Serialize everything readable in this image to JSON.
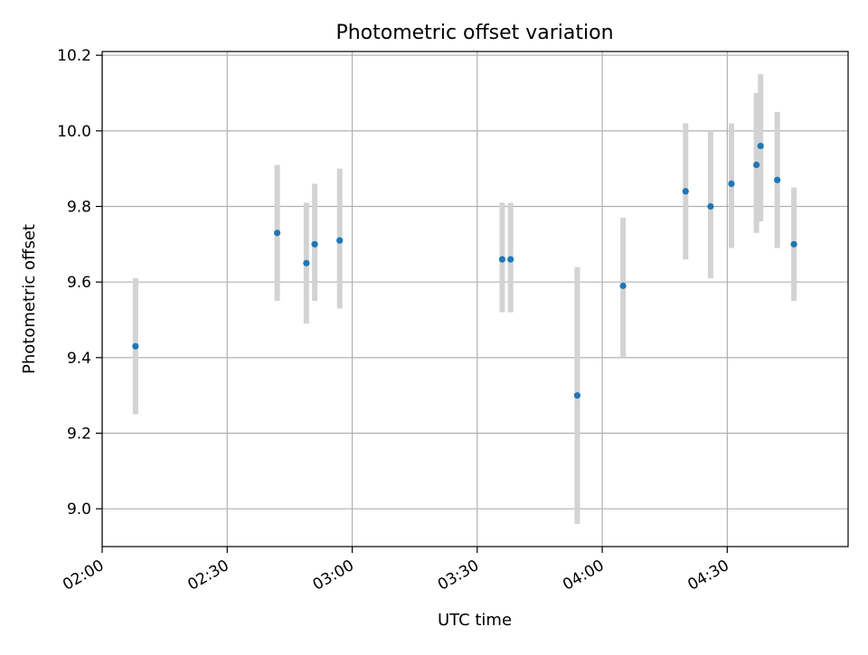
{
  "chart_data": {
    "type": "scatter",
    "title": "Photometric offset variation",
    "xlabel": "UTC time",
    "ylabel": "Photometric offset",
    "x_type": "time",
    "xlim": [
      "02:00",
      "04:59"
    ],
    "ylim": [
      8.9,
      10.21
    ],
    "xticks": [
      "02:00",
      "02:30",
      "03:00",
      "03:30",
      "04:00",
      "04:30"
    ],
    "yticks": [
      "9.0",
      "9.2",
      "9.4",
      "9.6",
      "9.8",
      "10.0",
      "10.2"
    ],
    "grid": true,
    "marker_color": "#1f77b4",
    "errorbar_color": "#d3d3d3",
    "points": [
      {
        "x": "02:08",
        "y": 9.43,
        "ylow": 9.25,
        "yhigh": 9.61
      },
      {
        "x": "02:42",
        "y": 9.73,
        "ylow": 9.55,
        "yhigh": 9.91
      },
      {
        "x": "02:49",
        "y": 9.65,
        "ylow": 9.49,
        "yhigh": 9.81
      },
      {
        "x": "02:51",
        "y": 9.7,
        "ylow": 9.55,
        "yhigh": 9.86
      },
      {
        "x": "02:57",
        "y": 9.71,
        "ylow": 9.53,
        "yhigh": 9.9
      },
      {
        "x": "03:36",
        "y": 9.66,
        "ylow": 9.52,
        "yhigh": 9.81
      },
      {
        "x": "03:38",
        "y": 9.66,
        "ylow": 9.52,
        "yhigh": 9.81
      },
      {
        "x": "03:54",
        "y": 9.3,
        "ylow": 8.96,
        "yhigh": 9.64
      },
      {
        "x": "04:05",
        "y": 9.59,
        "ylow": 9.4,
        "yhigh": 9.77
      },
      {
        "x": "04:20",
        "y": 9.84,
        "ylow": 9.66,
        "yhigh": 10.02
      },
      {
        "x": "04:26",
        "y": 9.8,
        "ylow": 9.61,
        "yhigh": 10.0
      },
      {
        "x": "04:31",
        "y": 9.86,
        "ylow": 9.69,
        "yhigh": 10.02
      },
      {
        "x": "04:37",
        "y": 9.91,
        "ylow": 9.73,
        "yhigh": 10.1
      },
      {
        "x": "04:38",
        "y": 9.96,
        "ylow": 9.76,
        "yhigh": 10.15
      },
      {
        "x": "04:42",
        "y": 9.87,
        "ylow": 9.69,
        "yhigh": 10.05
      },
      {
        "x": "04:46",
        "y": 9.7,
        "ylow": 9.55,
        "yhigh": 9.85
      }
    ]
  }
}
